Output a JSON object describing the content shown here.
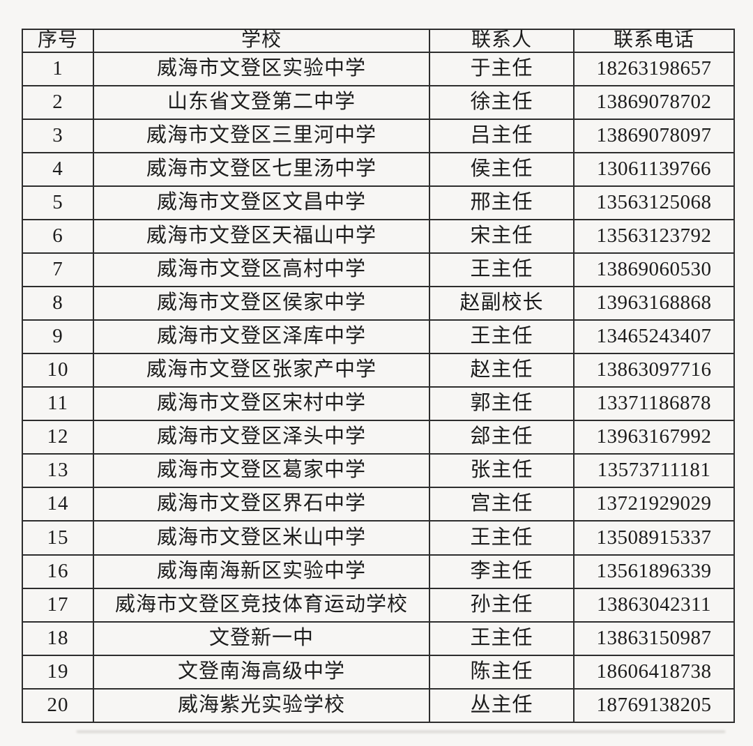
{
  "table": {
    "headers": [
      "序号",
      "学校",
      "联系人",
      "联系电话"
    ],
    "rows": [
      {
        "no": "1",
        "school": "威海市文登区实验中学",
        "contact": "于主任",
        "phone": "18263198657"
      },
      {
        "no": "2",
        "school": "山东省文登第二中学",
        "contact": "徐主任",
        "phone": "13869078702"
      },
      {
        "no": "3",
        "school": "威海市文登区三里河中学",
        "contact": "吕主任",
        "phone": "13869078097"
      },
      {
        "no": "4",
        "school": "威海市文登区七里汤中学",
        "contact": "侯主任",
        "phone": "13061139766"
      },
      {
        "no": "5",
        "school": "威海市文登区文昌中学",
        "contact": "邢主任",
        "phone": "13563125068"
      },
      {
        "no": "6",
        "school": "威海市文登区天福山中学",
        "contact": "宋主任",
        "phone": "13563123792"
      },
      {
        "no": "7",
        "school": "威海市文登区高村中学",
        "contact": "王主任",
        "phone": "13869060530"
      },
      {
        "no": "8",
        "school": "威海市文登区侯家中学",
        "contact": "赵副校长",
        "phone": "13963168868"
      },
      {
        "no": "9",
        "school": "威海市文登区泽库中学",
        "contact": "王主任",
        "phone": "13465243407"
      },
      {
        "no": "10",
        "school": "威海市文登区张家产中学",
        "contact": "赵主任",
        "phone": "13863097716"
      },
      {
        "no": "11",
        "school": "威海市文登区宋村中学",
        "contact": "郭主任",
        "phone": "13371186878"
      },
      {
        "no": "12",
        "school": "威海市文登区泽头中学",
        "contact": "郐主任",
        "phone": "13963167992"
      },
      {
        "no": "13",
        "school": "威海市文登区葛家中学",
        "contact": "张主任",
        "phone": "13573711181"
      },
      {
        "no": "14",
        "school": "威海市文登区界石中学",
        "contact": "宫主任",
        "phone": "13721929029"
      },
      {
        "no": "15",
        "school": "威海市文登区米山中学",
        "contact": "王主任",
        "phone": "13508915337"
      },
      {
        "no": "16",
        "school": "威海南海新区实验中学",
        "contact": "李主任",
        "phone": "13561896339"
      },
      {
        "no": "17",
        "school": "威海市文登区竞技体育运动学校",
        "contact": "孙主任",
        "phone": "13863042311"
      },
      {
        "no": "18",
        "school": "文登新一中",
        "contact": "王主任",
        "phone": "13863150987"
      },
      {
        "no": "19",
        "school": "文登南海高级中学",
        "contact": "陈主任",
        "phone": "18606418738"
      },
      {
        "no": "20",
        "school": "威海紫光实验学校",
        "contact": "丛主任",
        "phone": "18769138205"
      }
    ]
  },
  "colors": {
    "background": "#f7f6f4",
    "border": "#2d2d2d",
    "text": "#1c1c1c"
  }
}
